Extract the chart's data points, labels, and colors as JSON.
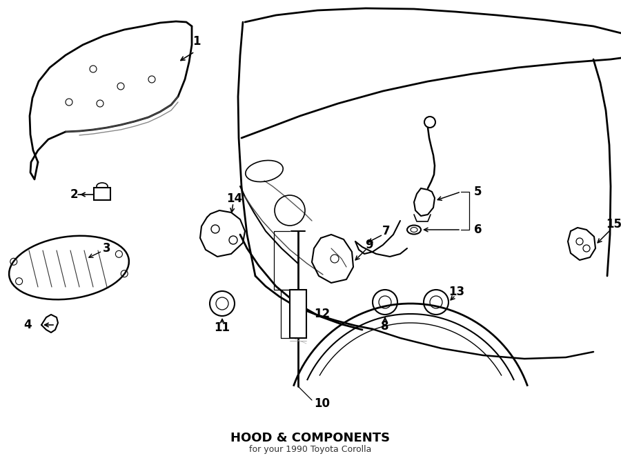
{
  "title": "HOOD & COMPONENTS",
  "subtitle": "for your 1990 Toyota Corolla",
  "background_color": "#ffffff",
  "line_color": "#000000",
  "text_color": "#000000",
  "fig_width": 9.0,
  "fig_height": 6.61,
  "dpi": 100
}
